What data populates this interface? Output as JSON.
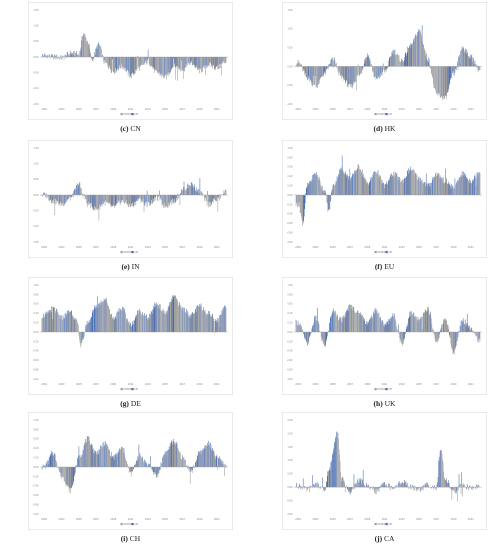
{
  "colors": {
    "down": "#9e9e9e",
    "up": "#4a6fb5",
    "axis": "#9a9a9a",
    "frame": "#d8d8d8"
  },
  "legend": [
    "DOWN",
    "UP"
  ],
  "x_ticks": [
    "2001",
    "2003",
    "2005",
    "2007",
    "2009",
    "2011",
    "2013",
    "2015",
    "2017",
    "2019",
    "2021"
  ],
  "chart_data": [
    {
      "type": "area",
      "panel_letter": "c",
      "panel_name": "CN",
      "ylim": [
        -1.5,
        1.5
      ],
      "y_ticks": [
        "1.50",
        "1.00",
        "0.50",
        "0.00",
        "-0.50",
        "-1.00",
        "-1.50"
      ],
      "knots": [
        [
          2001,
          0.05
        ],
        [
          2002,
          0.0
        ],
        [
          2003,
          -0.03
        ],
        [
          2004,
          0.12
        ],
        [
          2005,
          0.08
        ],
        [
          2005.5,
          0.75
        ],
        [
          2006,
          0.5
        ],
        [
          2006.5,
          -0.1
        ],
        [
          2007.3,
          0.4
        ],
        [
          2008,
          -0.2
        ],
        [
          2009,
          -0.45
        ],
        [
          2010,
          -0.3
        ],
        [
          2011,
          -0.6
        ],
        [
          2012,
          -0.35
        ],
        [
          2013,
          -0.15
        ],
        [
          2014,
          -0.5
        ],
        [
          2015,
          -0.65
        ],
        [
          2016,
          -0.3
        ],
        [
          2017,
          -0.4
        ],
        [
          2018,
          -0.2
        ],
        [
          2019,
          -0.45
        ],
        [
          2020,
          -0.25
        ],
        [
          2021,
          -0.35
        ],
        [
          2022,
          -0.15
        ]
      ]
    },
    {
      "type": "area",
      "panel_letter": "d",
      "panel_name": "HK",
      "ylim": [
        -1.0,
        1.5
      ],
      "y_ticks": [
        "1.50",
        "1.00",
        "0.50",
        "0.00",
        "-0.50",
        "-1.00"
      ],
      "knots": [
        [
          2001,
          0.1
        ],
        [
          2002,
          -0.3
        ],
        [
          2003,
          -0.55
        ],
        [
          2004,
          -0.2
        ],
        [
          2005,
          0.2
        ],
        [
          2006,
          -0.3
        ],
        [
          2007,
          -0.55
        ],
        [
          2008,
          -0.25
        ],
        [
          2009,
          0.3
        ],
        [
          2010,
          -0.35
        ],
        [
          2011,
          -0.15
        ],
        [
          2012,
          0.4
        ],
        [
          2013,
          0.15
        ],
        [
          2014,
          0.55
        ],
        [
          2015,
          0.95
        ],
        [
          2016,
          0.2
        ],
        [
          2017,
          -0.75
        ],
        [
          2018,
          -0.85
        ],
        [
          2019,
          -0.2
        ],
        [
          2020,
          0.5
        ],
        [
          2021,
          0.25
        ],
        [
          2022,
          -0.1
        ]
      ]
    },
    {
      "type": "area",
      "panel_letter": "e",
      "panel_name": "IN",
      "ylim": [
        -1.5,
        1.5
      ],
      "y_ticks": [
        "1.50",
        "1.00",
        "0.50",
        "0.00",
        "-0.50",
        "-1.00",
        "-1.50"
      ],
      "knots": [
        [
          2001,
          0.0
        ],
        [
          2002,
          -0.2
        ],
        [
          2003,
          -0.3
        ],
        [
          2004,
          -0.1
        ],
        [
          2005,
          0.35
        ],
        [
          2005.5,
          0.0
        ],
        [
          2006,
          -0.3
        ],
        [
          2007,
          -0.45
        ],
        [
          2008,
          -0.25
        ],
        [
          2009,
          -0.4
        ],
        [
          2010,
          -0.2
        ],
        [
          2011,
          -0.35
        ],
        [
          2012,
          -0.15
        ],
        [
          2013,
          -0.3
        ],
        [
          2014,
          -0.1
        ],
        [
          2015,
          -0.35
        ],
        [
          2016,
          -0.2
        ],
        [
          2017,
          0.15
        ],
        [
          2018,
          0.35
        ],
        [
          2019,
          0.1
        ],
        [
          2020,
          -0.3
        ],
        [
          2021,
          -0.15
        ],
        [
          2022,
          0.1
        ]
      ]
    },
    {
      "type": "area",
      "panel_letter": "f",
      "panel_name": "EU",
      "ylim": [
        -1.0,
        1.0
      ],
      "y_ticks": [
        "1.00",
        "0.80",
        "0.60",
        "0.40",
        "0.20",
        "0.00",
        "-0.20",
        "-0.40",
        "-0.60",
        "-0.80",
        "-1.00"
      ],
      "knots": [
        [
          2001,
          -0.2
        ],
        [
          2001.5,
          -0.6
        ],
        [
          2002,
          0.2
        ],
        [
          2003,
          0.45
        ],
        [
          2004,
          0.1
        ],
        [
          2004.5,
          -0.35
        ],
        [
          2005,
          0.2
        ],
        [
          2006,
          0.55
        ],
        [
          2007,
          0.35
        ],
        [
          2008,
          0.6
        ],
        [
          2009,
          0.25
        ],
        [
          2010,
          0.5
        ],
        [
          2011,
          0.2
        ],
        [
          2012,
          0.45
        ],
        [
          2013,
          0.3
        ],
        [
          2014,
          0.55
        ],
        [
          2015,
          0.35
        ],
        [
          2016,
          0.2
        ],
        [
          2017,
          0.45
        ],
        [
          2018,
          0.3
        ],
        [
          2019,
          0.15
        ],
        [
          2020,
          0.45
        ],
        [
          2021,
          0.3
        ],
        [
          2022,
          0.5
        ]
      ]
    },
    {
      "type": "area",
      "panel_letter": "g",
      "panel_name": "DE",
      "ylim": [
        -1.0,
        1.0
      ],
      "y_ticks": [
        "1.00",
        "0.80",
        "0.60",
        "0.40",
        "0.20",
        "0.00",
        "-0.20",
        "-0.40",
        "-0.60",
        "-0.80",
        "-1.00"
      ],
      "knots": [
        [
          2001,
          0.35
        ],
        [
          2002,
          0.5
        ],
        [
          2003,
          0.3
        ],
        [
          2004,
          0.45
        ],
        [
          2004.8,
          0.2
        ],
        [
          2005.2,
          -0.3
        ],
        [
          2006,
          0.2
        ],
        [
          2007,
          0.55
        ],
        [
          2008,
          0.7
        ],
        [
          2009,
          0.3
        ],
        [
          2010,
          0.5
        ],
        [
          2011,
          0.15
        ],
        [
          2012,
          0.45
        ],
        [
          2013,
          0.3
        ],
        [
          2014,
          0.6
        ],
        [
          2015,
          0.4
        ],
        [
          2016,
          0.75
        ],
        [
          2017,
          0.5
        ],
        [
          2018,
          0.35
        ],
        [
          2019,
          0.55
        ],
        [
          2020,
          0.4
        ],
        [
          2021,
          0.25
        ],
        [
          2022,
          0.55
        ]
      ]
    },
    {
      "type": "area",
      "panel_letter": "h",
      "panel_name": "UK",
      "ylim": [
        -1.0,
        1.0
      ],
      "y_ticks": [
        "1.00",
        "0.80",
        "0.60",
        "0.40",
        "0.20",
        "0.00",
        "-0.20",
        "-0.40",
        "-0.60",
        "-0.80",
        "-1.00"
      ],
      "knots": [
        [
          2001,
          0.2
        ],
        [
          2002,
          -0.25
        ],
        [
          2003,
          0.3
        ],
        [
          2004,
          -0.3
        ],
        [
          2005,
          0.45
        ],
        [
          2006,
          0.25
        ],
        [
          2007,
          0.55
        ],
        [
          2008,
          0.4
        ],
        [
          2009,
          0.2
        ],
        [
          2010,
          0.45
        ],
        [
          2011,
          0.15
        ],
        [
          2012,
          0.35
        ],
        [
          2013,
          -0.25
        ],
        [
          2014,
          0.4
        ],
        [
          2015,
          0.25
        ],
        [
          2016,
          0.5
        ],
        [
          2017,
          -0.2
        ],
        [
          2018,
          0.3
        ],
        [
          2019,
          -0.45
        ],
        [
          2020,
          0.25
        ],
        [
          2021,
          0.1
        ],
        [
          2022,
          -0.2
        ]
      ]
    },
    {
      "type": "area",
      "panel_letter": "i",
      "panel_name": "CH",
      "ylim": [
        -1.0,
        1.0
      ],
      "y_ticks": [
        "1.00",
        "0.80",
        "0.60",
        "0.40",
        "0.20",
        "0.00",
        "-0.20",
        "-0.40",
        "-0.60",
        "-0.80",
        "-1.00"
      ],
      "knots": [
        [
          2001,
          0.0
        ],
        [
          2002,
          0.3
        ],
        [
          2003,
          -0.2
        ],
        [
          2004,
          -0.5
        ],
        [
          2005,
          0.2
        ],
        [
          2006,
          0.6
        ],
        [
          2007,
          0.3
        ],
        [
          2008,
          0.5
        ],
        [
          2009,
          0.2
        ],
        [
          2010,
          0.4
        ],
        [
          2011,
          -0.15
        ],
        [
          2012,
          0.25
        ],
        [
          2013,
          0.05
        ],
        [
          2014,
          -0.2
        ],
        [
          2015,
          0.3
        ],
        [
          2016,
          0.55
        ],
        [
          2017,
          0.2
        ],
        [
          2018,
          -0.1
        ],
        [
          2019,
          0.3
        ],
        [
          2020,
          0.5
        ],
        [
          2021,
          0.2
        ],
        [
          2022,
          0.05
        ]
      ]
    },
    {
      "type": "area",
      "panel_letter": "j",
      "panel_name": "CA",
      "ylim": [
        -1.0,
        2.5
      ],
      "y_ticks": [
        "2.50",
        "2.00",
        "1.50",
        "1.00",
        "0.50",
        "0.00",
        "-0.50",
        "-1.00"
      ],
      "knots": [
        [
          2001,
          0.05
        ],
        [
          2002,
          -0.1
        ],
        [
          2003,
          0.1
        ],
        [
          2004,
          -0.15
        ],
        [
          2004.5,
          0.6
        ],
        [
          2005.5,
          2.1
        ],
        [
          2006,
          0.3
        ],
        [
          2007,
          -0.2
        ],
        [
          2008,
          0.25
        ],
        [
          2009,
          0.05
        ],
        [
          2010,
          -0.15
        ],
        [
          2011,
          0.1
        ],
        [
          2012,
          -0.05
        ],
        [
          2013,
          0.2
        ],
        [
          2014,
          0.0
        ],
        [
          2015,
          -0.1
        ],
        [
          2016,
          0.1
        ],
        [
          2017,
          -0.05
        ],
        [
          2017.5,
          1.4
        ],
        [
          2018,
          0.3
        ],
        [
          2019,
          -0.2
        ],
        [
          2020,
          0.1
        ],
        [
          2021,
          -0.05
        ],
        [
          2022,
          0.05
        ]
      ]
    }
  ]
}
